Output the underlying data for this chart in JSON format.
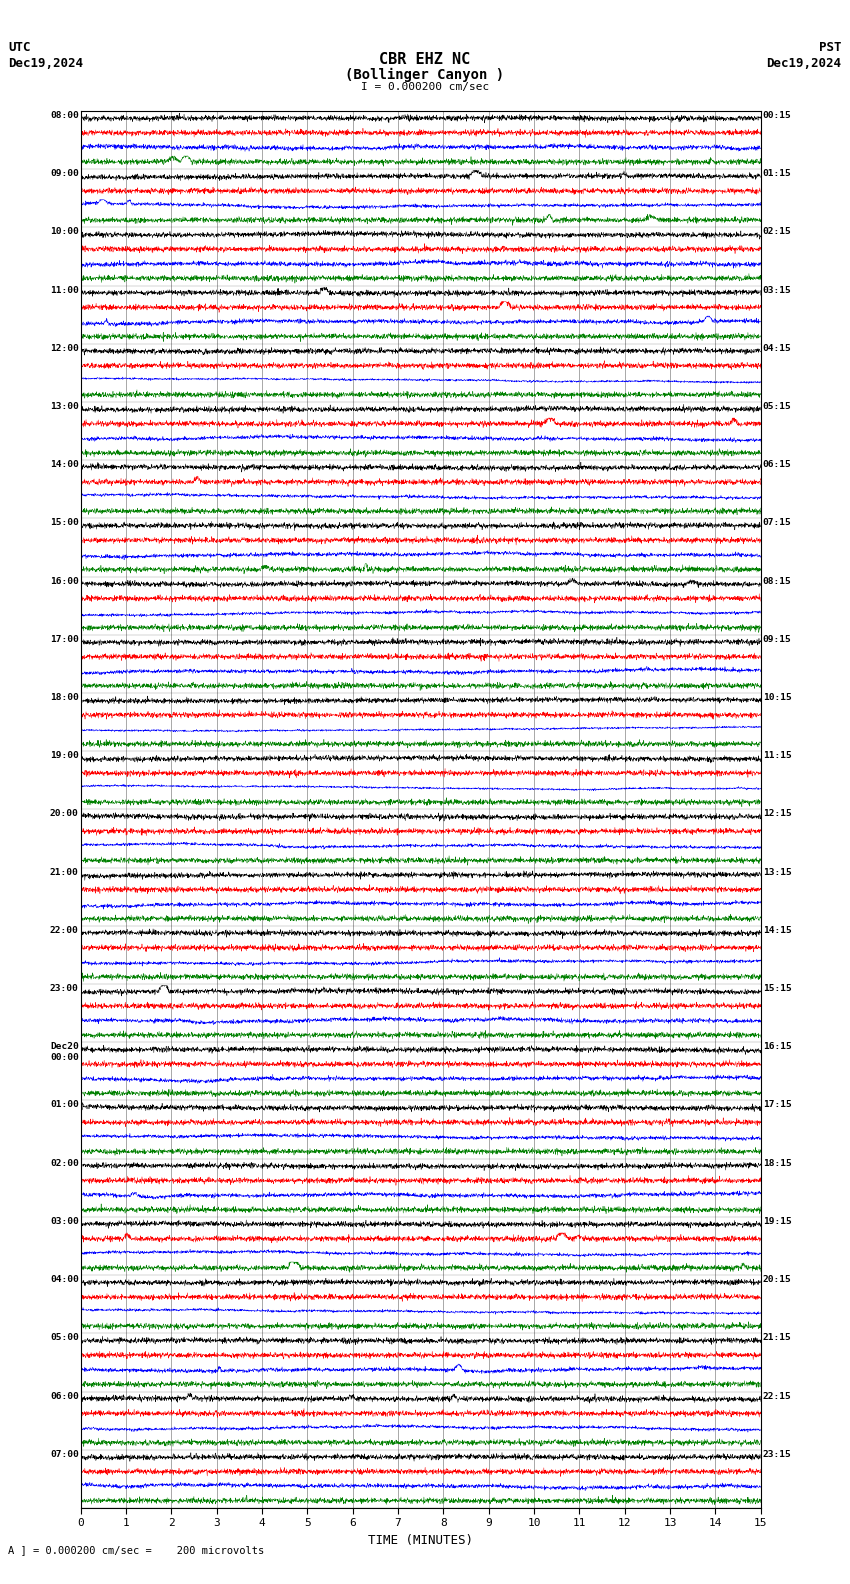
{
  "title_line1": "CBR EHZ NC",
  "title_line2": "(Bollinger Canyon )",
  "scale_label": "I = 0.000200 cm/sec",
  "left_label_top": "UTC",
  "left_label_bot": "Dec19,2024",
  "right_label_top": "PST",
  "right_label_bot": "Dec19,2024",
  "bottom_label": "TIME (MINUTES)",
  "footer_label": "= 0.000200 cm/sec =    200 microvolts",
  "utc_times": [
    "08:00",
    "09:00",
    "10:00",
    "11:00",
    "12:00",
    "13:00",
    "14:00",
    "15:00",
    "16:00",
    "17:00",
    "18:00",
    "19:00",
    "20:00",
    "21:00",
    "22:00",
    "23:00",
    "Dec20\n00:00",
    "01:00",
    "02:00",
    "03:00",
    "04:00",
    "05:00",
    "06:00",
    "07:00"
  ],
  "pst_times": [
    "00:15",
    "01:15",
    "02:15",
    "03:15",
    "04:15",
    "05:15",
    "06:15",
    "07:15",
    "08:15",
    "09:15",
    "10:15",
    "11:15",
    "12:15",
    "13:15",
    "14:15",
    "15:15",
    "16:15",
    "17:15",
    "18:15",
    "19:15",
    "20:15",
    "21:15",
    "22:15",
    "23:15"
  ],
  "num_rows": 24,
  "traces_per_row": 4,
  "colors": [
    "black",
    "red",
    "blue",
    "green"
  ],
  "fig_width": 8.5,
  "fig_height": 15.84,
  "bg_color": "white",
  "x_min": 0,
  "x_max": 15,
  "x_ticks": [
    0,
    1,
    2,
    3,
    4,
    5,
    6,
    7,
    8,
    9,
    10,
    11,
    12,
    13,
    14,
    15
  ],
  "noise_scales": [
    0.55,
    0.55,
    0.65,
    0.7,
    0.65,
    0.55,
    0.4,
    0.3,
    0.18,
    0.15,
    0.14,
    0.13,
    0.15,
    0.2,
    0.14,
    0.13,
    0.13,
    0.12,
    0.12,
    0.12,
    0.12,
    0.22,
    0.12,
    0.12
  ]
}
